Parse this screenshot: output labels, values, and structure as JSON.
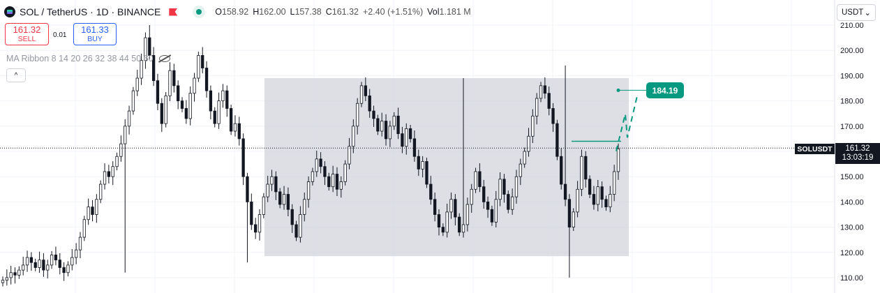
{
  "header": {
    "title": "SOL / TetherUS · 1D · BINANCE",
    "ohlc": [
      {
        "key": "O",
        "value": "158.92"
      },
      {
        "key": "H",
        "value": "162.00"
      },
      {
        "key": "L",
        "value": "157.38"
      },
      {
        "key": "C",
        "value": "161.32"
      }
    ],
    "change": "+2.40 (+1.51%)",
    "volume_label": "Vol",
    "volume_value": "1.181 M"
  },
  "trade": {
    "sell_price": "161.32",
    "sell_label": "SELL",
    "spread": "0.01",
    "buy_price": "161.33",
    "buy_label": "BUY"
  },
  "indicator": {
    "label": "MA Ribbon 8 14 20 26 32 38 44 50 60"
  },
  "collapse_glyph": "^",
  "currency": {
    "value": "USDT",
    "chevron": "⌄"
  },
  "symbol_tag": "SOLUSDT",
  "last_price": {
    "price": "161.32",
    "countdown": "13:03:19"
  },
  "target_label": "184.19",
  "colors": {
    "up": "#ffffff",
    "down": "#131722",
    "accent": "#089981",
    "range_box": "#d1d4dc",
    "sell": "#f23645",
    "buy": "#2962ff"
  },
  "icons": [
    "solana-logo-icon",
    "flag-icon",
    "market-status-icon",
    "eye-off-icon",
    "chevron-up-icon",
    "chevron-down-icon"
  ],
  "chart_data": {
    "type": "candlestick",
    "y_axis_labels": [
      "210.00",
      "200.00",
      "190.00",
      "180.00",
      "170.00",
      "160.00",
      "150.00",
      "140.00",
      "130.00",
      "120.00",
      "110.00"
    ],
    "ylim": [
      105,
      213
    ],
    "last_price": 161.32,
    "range_box": {
      "low": 118.5,
      "high": 189
    },
    "resistance_level": 164,
    "target": 184.19,
    "candles_note": "daily SOL/USDT candles, approximate",
    "series": [
      {
        "closes": [
          109,
          110,
          112,
          111,
          113,
          115,
          118,
          116,
          114,
          117,
          113,
          115,
          119,
          117,
          114,
          112,
          115,
          118,
          121,
          126,
          133,
          138,
          135,
          141,
          147,
          152,
          150,
          154,
          158,
          163,
          170,
          176,
          184,
          189,
          196,
          205,
          198,
          188,
          179,
          171,
          182,
          192,
          186,
          180,
          177,
          173,
          183,
          189,
          198,
          193,
          184,
          176,
          171,
          180,
          184,
          177,
          168,
          171,
          165,
          150,
          140,
          131,
          128,
          135,
          142,
          147,
          150,
          144,
          139,
          143,
          137,
          131,
          126,
          135,
          141,
          148,
          152,
          157,
          154,
          150,
          146,
          151,
          145,
          148,
          155,
          162,
          170,
          179,
          186,
          182,
          176,
          173,
          168,
          172,
          165,
          170,
          174,
          167,
          162,
          169,
          165,
          158,
          153,
          156,
          147,
          141,
          135,
          130,
          128,
          136,
          141,
          134,
          128,
          131,
          139,
          145,
          152,
          146,
          140,
          137,
          132,
          141,
          149,
          143,
          137,
          142,
          150,
          155,
          160,
          166,
          174,
          181,
          186,
          183,
          177,
          171,
          158,
          147,
          141,
          130,
          136,
          145,
          158,
          149,
          143,
          139,
          146,
          141,
          138,
          143,
          152,
          161
        ],
        "wick_range": 3
      }
    ]
  }
}
